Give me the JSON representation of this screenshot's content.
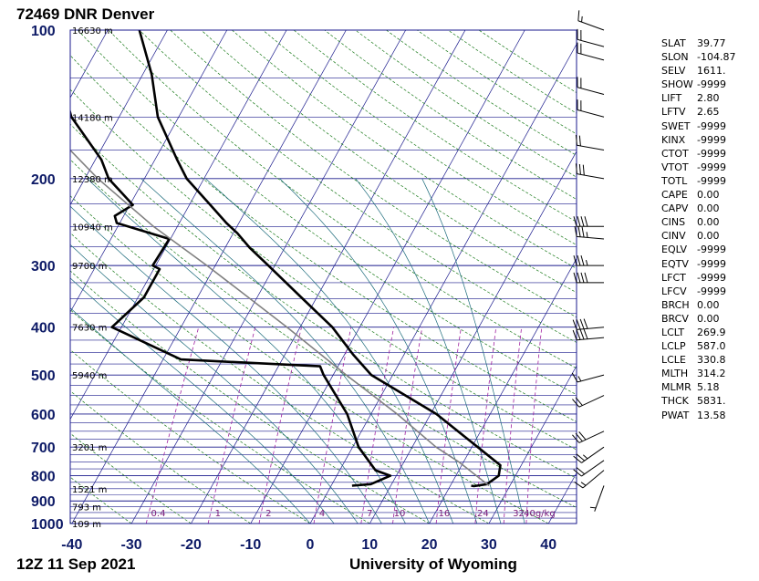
{
  "station_title": "72469 DNR Denver",
  "time_label": "12Z 11 Sep 2021",
  "source_label": "University of Wyoming",
  "colors": {
    "isobar": "#1a1a8c",
    "isotherm": "#1a1a8c",
    "dry_adiabat": "#1a7a1a",
    "moist_adiabat": "#1a6a7a",
    "mixing_ratio": "#a020a0",
    "parcel": "#808080",
    "sounding": "#000000"
  },
  "chart_data": {
    "type": "line",
    "title": "72469 DNR Denver",
    "subtitle": "12Z 11 Sep 2021",
    "xlabel": "",
    "ylabel": "",
    "x_range_c": [
      -40,
      45
    ],
    "pressure_range_hpa": [
      1000,
      100
    ],
    "log_pressure_axis": true,
    "pressure_ticks": [
      100,
      200,
      300,
      400,
      500,
      600,
      700,
      800,
      900,
      1000
    ],
    "temperature_ticks": [
      -40,
      -30,
      -20,
      -10,
      0,
      10,
      20,
      30,
      40
    ],
    "height_labels": [
      {
        "p": 100,
        "text": "16630 m"
      },
      {
        "p": 150,
        "text": "14180 m"
      },
      {
        "p": 200,
        "text": "12380 m"
      },
      {
        "p": 250,
        "text": "10940 m"
      },
      {
        "p": 300,
        "text": "9700 m"
      },
      {
        "p": 400,
        "text": "7630 m"
      },
      {
        "p": 500,
        "text": "5940 m"
      },
      {
        "p": 700,
        "text": "3201 m"
      },
      {
        "p": 850,
        "text": "1521 m"
      },
      {
        "p": 925,
        "text": "793 m"
      },
      {
        "p": 1000,
        "text": "109 m"
      }
    ],
    "mixing_ratio_labels": [
      {
        "x": -25.5,
        "text": "0.4"
      },
      {
        "x": -15.5,
        "text": "1"
      },
      {
        "x": -7,
        "text": "2"
      },
      {
        "x": 2,
        "text": "4"
      },
      {
        "x": 10,
        "text": "7"
      },
      {
        "x": 15,
        "text": "10"
      },
      {
        "x": 22.5,
        "text": "16"
      },
      {
        "x": 29,
        "text": "24"
      },
      {
        "x": 35,
        "text": "32"
      },
      {
        "x": 38.5,
        "text": "40g/kg"
      }
    ],
    "series": [
      {
        "kind": "temperature",
        "points": [
          {
            "p": 838,
            "t": 23.5
          },
          {
            "p": 840,
            "t": 24.0
          },
          {
            "p": 832,
            "t": 26.0
          },
          {
            "p": 800,
            "t": 27.2
          },
          {
            "p": 762,
            "t": 26.5
          },
          {
            "p": 700,
            "t": 21.0
          },
          {
            "p": 600,
            "t": 11.0
          },
          {
            "p": 500,
            "t": -3.6
          },
          {
            "p": 454,
            "t": -8.6
          },
          {
            "p": 400,
            "t": -14.6
          },
          {
            "p": 348,
            "t": -22.6
          },
          {
            "p": 300,
            "t": -31.1
          },
          {
            "p": 276,
            "t": -35.9
          },
          {
            "p": 258,
            "t": -39.3
          },
          {
            "p": 246,
            "t": -42.1
          },
          {
            "p": 226,
            "t": -46.5
          },
          {
            "p": 200,
            "t": -52.9
          },
          {
            "p": 183,
            "t": -56.3
          },
          {
            "p": 150,
            "t": -63.5
          },
          {
            "p": 123,
            "t": -68.5
          },
          {
            "p": 100,
            "t": -74.7
          }
        ]
      },
      {
        "kind": "dewpoint",
        "points": [
          {
            "p": 838,
            "t": 3.5
          },
          {
            "p": 832,
            "t": 6.5
          },
          {
            "p": 800,
            "t": 9.0
          },
          {
            "p": 780,
            "t": 6.0
          },
          {
            "p": 700,
            "t": 1.0
          },
          {
            "p": 600,
            "t": -4.0
          },
          {
            "p": 500,
            "t": -11.6
          },
          {
            "p": 480,
            "t": -13.0
          },
          {
            "p": 465,
            "t": -37.0
          },
          {
            "p": 400,
            "t": -51.6
          },
          {
            "p": 348,
            "t": -49.0
          },
          {
            "p": 305,
            "t": -49.0
          },
          {
            "p": 300,
            "t": -50.5
          },
          {
            "p": 265,
            "t": -50.2
          },
          {
            "p": 246,
            "t": -60.5
          },
          {
            "p": 238,
            "t": -61.5
          },
          {
            "p": 226,
            "t": -59.5
          },
          {
            "p": 200,
            "t": -66.0
          },
          {
            "p": 183,
            "t": -69.0
          },
          {
            "p": 150,
            "t": -78.0
          },
          {
            "p": 123,
            "t": -84.0
          },
          {
            "p": 100,
            "t": -89.0
          }
        ]
      },
      {
        "kind": "parcel",
        "points": [
          {
            "p": 838,
            "t": 26.5
          },
          {
            "p": 750,
            "t": 19.2
          },
          {
            "p": 700,
            "t": 14.0
          },
          {
            "p": 600,
            "t": 4.4
          },
          {
            "p": 500,
            "t": -7.8
          },
          {
            "p": 400,
            "t": -22.2
          },
          {
            "p": 300,
            "t": -41.4
          },
          {
            "p": 250,
            "t": -54.0
          },
          {
            "p": 200,
            "t": -67.8
          },
          {
            "p": 150,
            "t": -83.6
          },
          {
            "p": 100,
            "t": -104.0
          }
        ]
      }
    ],
    "wind_barbs": [
      {
        "p": 838,
        "dir": 200,
        "speed": 5
      },
      {
        "p": 780,
        "dir": 230,
        "speed": 15
      },
      {
        "p": 745,
        "dir": 235,
        "speed": 20
      },
      {
        "p": 700,
        "dir": 235,
        "speed": 25
      },
      {
        "p": 650,
        "dir": 245,
        "speed": 30
      },
      {
        "p": 550,
        "dir": 245,
        "speed": 20
      },
      {
        "p": 500,
        "dir": 255,
        "speed": 15
      },
      {
        "p": 420,
        "dir": 265,
        "speed": 40
      },
      {
        "p": 400,
        "dir": 265,
        "speed": 40
      },
      {
        "p": 325,
        "dir": 270,
        "speed": 40
      },
      {
        "p": 300,
        "dir": 270,
        "speed": 35
      },
      {
        "p": 265,
        "dir": 275,
        "speed": 35
      },
      {
        "p": 250,
        "dir": 270,
        "speed": 40
      },
      {
        "p": 200,
        "dir": 280,
        "speed": 30
      },
      {
        "p": 175,
        "dir": 280,
        "speed": 20
      },
      {
        "p": 150,
        "dir": 285,
        "speed": 20
      },
      {
        "p": 135,
        "dir": 285,
        "speed": 20
      },
      {
        "p": 115,
        "dir": 285,
        "speed": 20
      },
      {
        "p": 108,
        "dir": 285,
        "speed": 20
      },
      {
        "p": 100,
        "dir": 290,
        "speed": 15
      }
    ]
  },
  "indices": [
    {
      "key": "SLAT",
      "value": "39.77"
    },
    {
      "key": "SLON",
      "value": "-104.87"
    },
    {
      "key": "SELV",
      "value": "1611."
    },
    {
      "key": "SHOW",
      "value": "-9999"
    },
    {
      "key": "LIFT",
      "value": "2.80"
    },
    {
      "key": "LFTV",
      "value": "2.65"
    },
    {
      "key": "SWET",
      "value": "-9999"
    },
    {
      "key": "KINX",
      "value": "-9999"
    },
    {
      "key": "CTOT",
      "value": "-9999"
    },
    {
      "key": "VTOT",
      "value": "-9999"
    },
    {
      "key": "TOTL",
      "value": "-9999"
    },
    {
      "key": "CAPE",
      "value": "0.00"
    },
    {
      "key": "CAPV",
      "value": "0.00"
    },
    {
      "key": "CINS",
      "value": "0.00"
    },
    {
      "key": "CINV",
      "value": "0.00"
    },
    {
      "key": "EQLV",
      "value": "-9999"
    },
    {
      "key": "EQTV",
      "value": "-9999"
    },
    {
      "key": "LFCT",
      "value": "-9999"
    },
    {
      "key": "LFCV",
      "value": "-9999"
    },
    {
      "key": "BRCH",
      "value": "0.00"
    },
    {
      "key": "BRCV",
      "value": "0.00"
    },
    {
      "key": "LCLT",
      "value": "269.9"
    },
    {
      "key": "LCLP",
      "value": "587.0"
    },
    {
      "key": "LCLE",
      "value": "330.8"
    },
    {
      "key": "MLTH",
      "value": "314.2"
    },
    {
      "key": "MLMR",
      "value": "5.18"
    },
    {
      "key": "THCK",
      "value": "5831."
    },
    {
      "key": "PWAT",
      "value": "13.58"
    }
  ]
}
